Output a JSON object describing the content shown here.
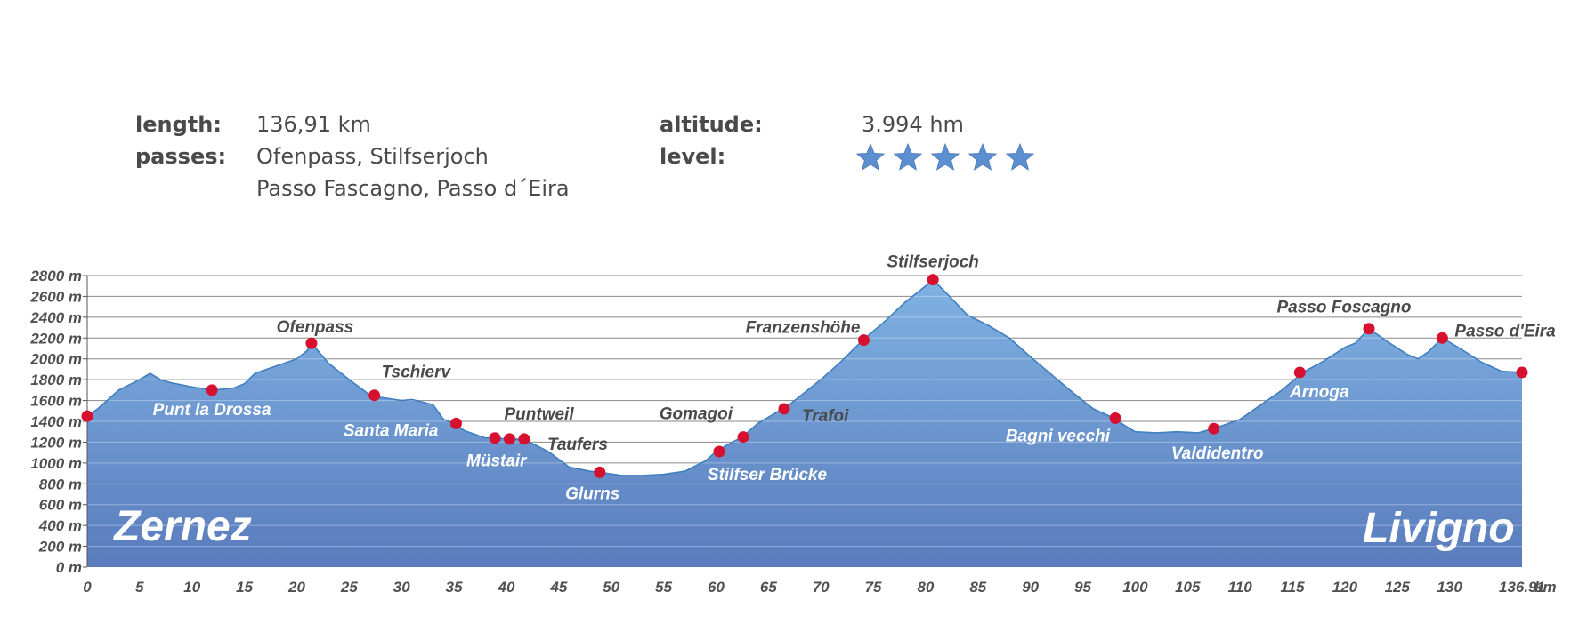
{
  "info": {
    "length_label": "length:",
    "length_value": "136,91 km",
    "passes_label": "passes:",
    "passes_line1": "Ofenpass, Stilfserjoch",
    "passes_line2": "Passo Fascagno, Passo d´Eira",
    "altitude_label": "altitude:",
    "altitude_value": "3.994 hm",
    "level_label": "level:",
    "level_stars": 5
  },
  "colors": {
    "area_top": "#7fb2e2",
    "area_bottom": "#5a7cbd",
    "outline": "#3f7fc0",
    "marker": "#d8102f",
    "star": "#5b8fd0",
    "text": "#4a4a4a"
  },
  "chart_data": {
    "type": "area",
    "xlabel": "km",
    "ylabel": "",
    "xlim": [
      0,
      136.91
    ],
    "ylim": [
      0,
      2800
    ],
    "x_ticks": [
      "0",
      "5",
      "10",
      "15",
      "20",
      "25",
      "30",
      "35",
      "40",
      "45",
      "50",
      "55",
      "60",
      "65",
      "70",
      "75",
      "80",
      "85",
      "90",
      "95",
      "100",
      "105",
      "110",
      "115",
      "120",
      "125",
      "130",
      "136.91"
    ],
    "y_ticks": [
      "0 m",
      "200 m",
      "400 m",
      "600 m",
      "800 m",
      "1000 m",
      "1200 m",
      "1400 m",
      "1600 m",
      "1800 m",
      "2000 m",
      "2200 m",
      "2400 m",
      "2600 m",
      "2800 m"
    ],
    "grid": true,
    "start_label": "Zernez",
    "end_label": "Livigno",
    "profile": {
      "x": [
        0,
        1,
        3,
        5,
        6,
        7,
        8,
        10,
        12,
        14,
        15,
        16,
        18,
        20,
        21,
        21.4,
        22,
        23,
        25,
        27,
        28,
        30,
        31,
        33,
        34,
        35,
        36,
        38,
        39,
        40,
        41,
        42,
        43,
        44,
        46,
        48,
        49,
        51,
        53,
        55,
        57,
        59,
        60,
        61,
        62.5,
        64,
        66,
        66.5,
        68,
        70,
        72,
        74,
        76,
        78,
        80,
        80.7,
        82,
        84,
        86,
        88,
        90,
        92,
        94,
        96,
        98,
        99,
        100,
        102,
        104,
        106,
        107.5,
        110,
        112,
        114,
        116,
        118,
        120,
        121,
        122.3,
        124,
        126,
        127,
        128,
        129.3,
        131,
        133,
        135,
        136.91
      ],
      "y": [
        1450,
        1520,
        1700,
        1800,
        1860,
        1800,
        1770,
        1730,
        1700,
        1720,
        1760,
        1860,
        1930,
        2000,
        2080,
        2150,
        2080,
        1960,
        1800,
        1650,
        1630,
        1600,
        1610,
        1560,
        1420,
        1380,
        1310,
        1240,
        1240,
        1230,
        1230,
        1210,
        1160,
        1110,
        960,
        920,
        910,
        880,
        880,
        890,
        920,
        1020,
        1110,
        1170,
        1250,
        1380,
        1500,
        1520,
        1640,
        1800,
        1980,
        2180,
        2350,
        2540,
        2700,
        2760,
        2630,
        2420,
        2320,
        2200,
        2020,
        1850,
        1680,
        1520,
        1430,
        1360,
        1300,
        1290,
        1300,
        1290,
        1330,
        1420,
        1560,
        1700,
        1870,
        1980,
        2110,
        2150,
        2290,
        2170,
        2040,
        2000,
        2070,
        2200,
        2100,
        1970,
        1880,
        1870
      ]
    },
    "points": [
      {
        "name": "",
        "x": 0,
        "y": 1450
      },
      {
        "name": "Punt la Drossa",
        "x": 11.9,
        "y": 1700
      },
      {
        "name": "Ofenpass",
        "x": 21.4,
        "y": 2150
      },
      {
        "name": "Tschierv",
        "x": 27.4,
        "y": 1650
      },
      {
        "name": "Santa Maria",
        "x": 35.2,
        "y": 1380
      },
      {
        "name": "Müstair",
        "x": 38.9,
        "y": 1240
      },
      {
        "name": "Puntweil",
        "x": 40.3,
        "y": 1230
      },
      {
        "name": "Taufers",
        "x": 41.7,
        "y": 1230
      },
      {
        "name": "Glurns",
        "x": 48.9,
        "y": 910
      },
      {
        "name": "Stilfser Brücke",
        "x": 60.3,
        "y": 1110
      },
      {
        "name": "Gomagoi",
        "x": 62.6,
        "y": 1250
      },
      {
        "name": "Trafoi",
        "x": 66.5,
        "y": 1520
      },
      {
        "name": "Franzenshöhe",
        "x": 74.1,
        "y": 2180
      },
      {
        "name": "Stilfserjoch",
        "x": 80.7,
        "y": 2760
      },
      {
        "name": "Bagni vecchi",
        "x": 98.1,
        "y": 1430
      },
      {
        "name": "Valdidentro",
        "x": 107.5,
        "y": 1330
      },
      {
        "name": "Arnoga",
        "x": 115.7,
        "y": 1870
      },
      {
        "name": "Passo Foscagno",
        "x": 122.3,
        "y": 2290
      },
      {
        "name": "Passo d'Eira",
        "x": 129.3,
        "y": 2200
      },
      {
        "name": "",
        "x": 136.91,
        "y": 1870
      }
    ]
  }
}
